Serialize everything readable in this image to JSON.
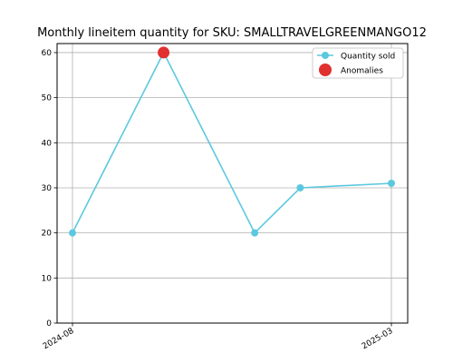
{
  "chart_data": {
    "type": "line",
    "title": "Monthly lineitem quantity for SKU: SMALLTRAVELGREENMANGO12",
    "xlabel": "",
    "ylabel": "",
    "x": [
      "2024-08",
      "2024-10",
      "2024-12",
      "2025-01",
      "2025-03"
    ],
    "x_tick_labels": [
      "2024-08",
      "2025-03"
    ],
    "ylim": [
      0,
      62
    ],
    "y_ticks": [
      0,
      10,
      20,
      30,
      40,
      50,
      60
    ],
    "grid": true,
    "legend_position": "top-right",
    "series": [
      {
        "name": "Quantity sold",
        "values": [
          20,
          60,
          20,
          30,
          31
        ],
        "color": "#5bc8e0",
        "marker": "circle"
      }
    ],
    "anomalies": {
      "name": "Anomalies",
      "color": "#e03030",
      "points": [
        {
          "x": "2024-10",
          "y": 60
        }
      ]
    }
  }
}
